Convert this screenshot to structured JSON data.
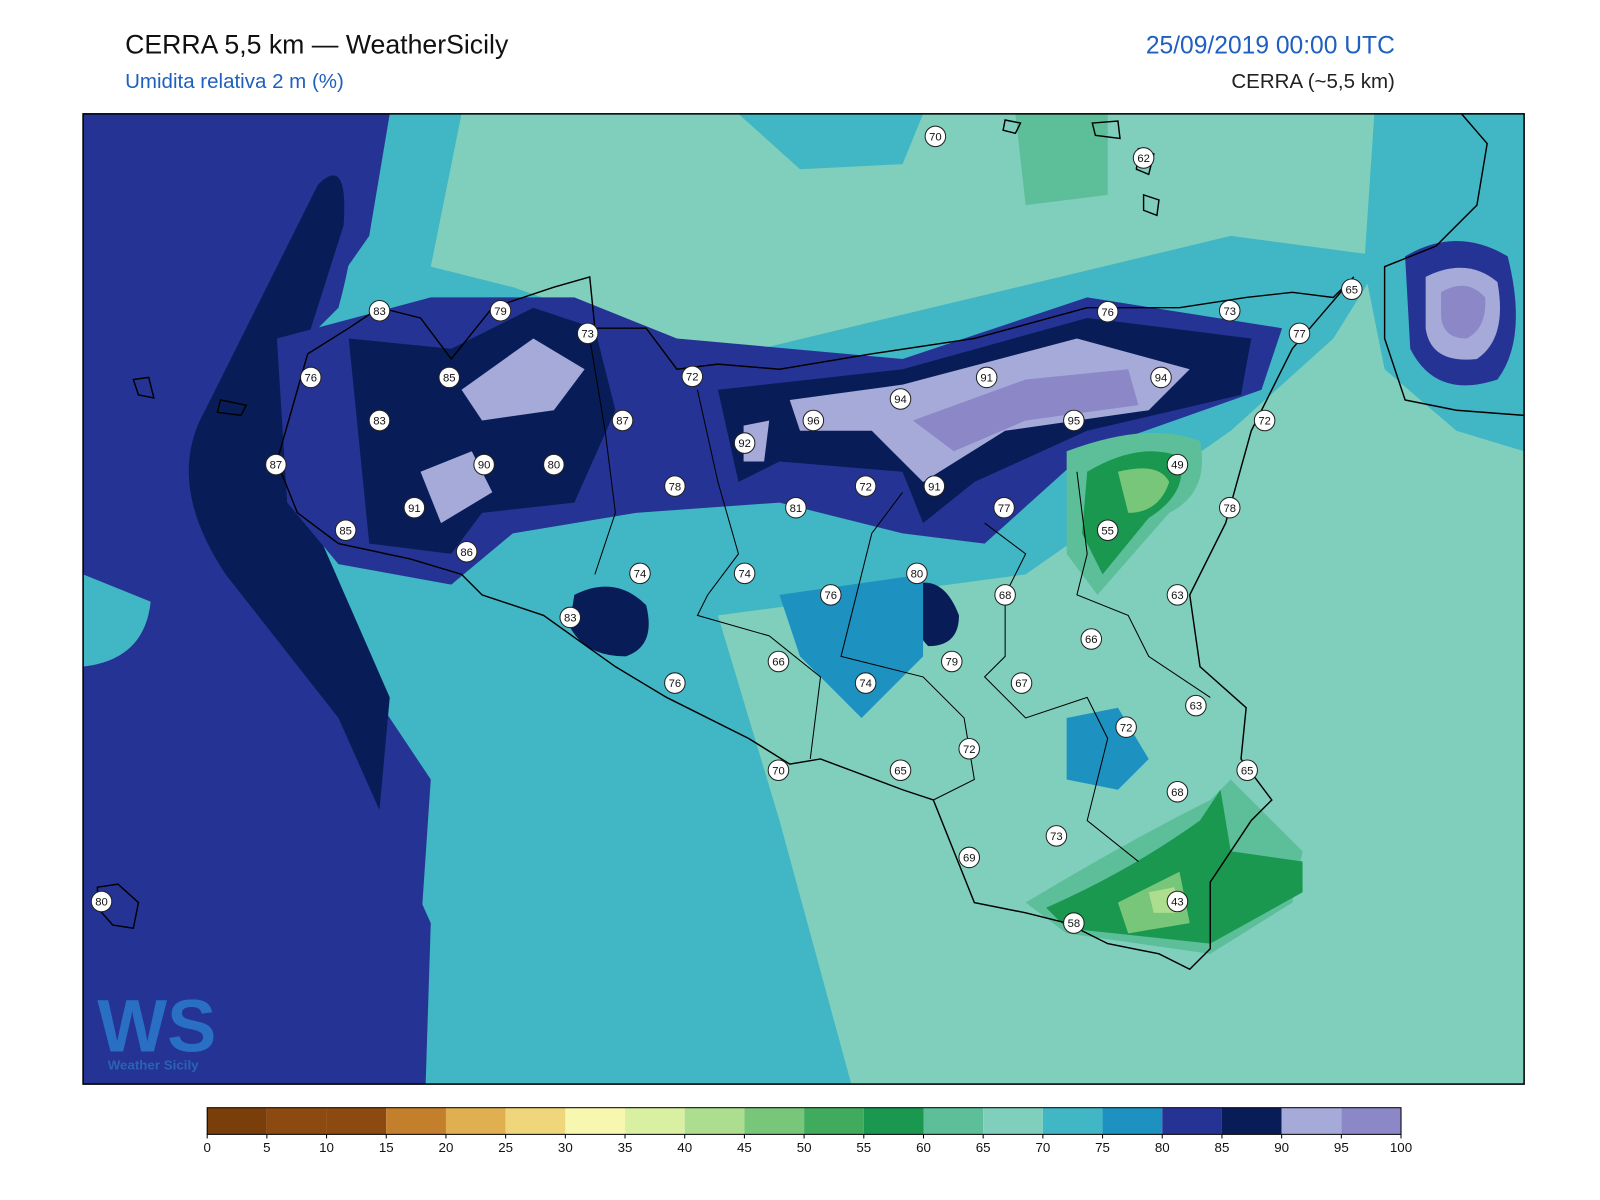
{
  "header": {
    "title": "CERRA 5,5 km — WeatherSicily",
    "subtitle": "Umidita relativa 2 m (%)",
    "date": "25/09/2019 00:00 UTC",
    "model": "CERRA (~5,5 km)"
  },
  "logo": {
    "mark": "WS",
    "name": "Weather Sicily"
  },
  "stations": [
    70,
    62,
    83,
    79,
    73,
    76,
    73,
    65,
    77,
    76,
    85,
    72,
    91,
    94,
    94,
    83,
    87,
    96,
    95,
    72,
    92,
    87,
    90,
    80,
    49,
    78,
    72,
    91,
    81,
    77,
    78,
    91,
    85,
    55,
    86,
    74,
    74,
    80,
    76,
    68,
    63,
    83,
    66,
    66,
    79,
    76,
    74,
    67,
    63,
    72,
    72,
    70,
    65,
    65,
    68,
    73,
    69,
    43,
    58,
    80
  ],
  "colorbar": {
    "ticks": [
      0,
      5,
      10,
      15,
      20,
      25,
      30,
      35,
      40,
      45,
      50,
      55,
      60,
      65,
      70,
      75,
      80,
      85,
      90,
      95,
      100
    ],
    "colors": [
      "#7a3e0a",
      "#8c4a10",
      "#8c4a10",
      "#c37f2b",
      "#e0b050",
      "#f0d67a",
      "#f7f7b0",
      "#d9f0a3",
      "#addd8e",
      "#78c679",
      "#41ab5d",
      "#1a9850",
      "#5cbf9a",
      "#7fcfbc",
      "#41b6c4",
      "#1d91c0",
      "#253494",
      "#081d58",
      "#a5aad9",
      "#8c88c8"
    ]
  }
}
